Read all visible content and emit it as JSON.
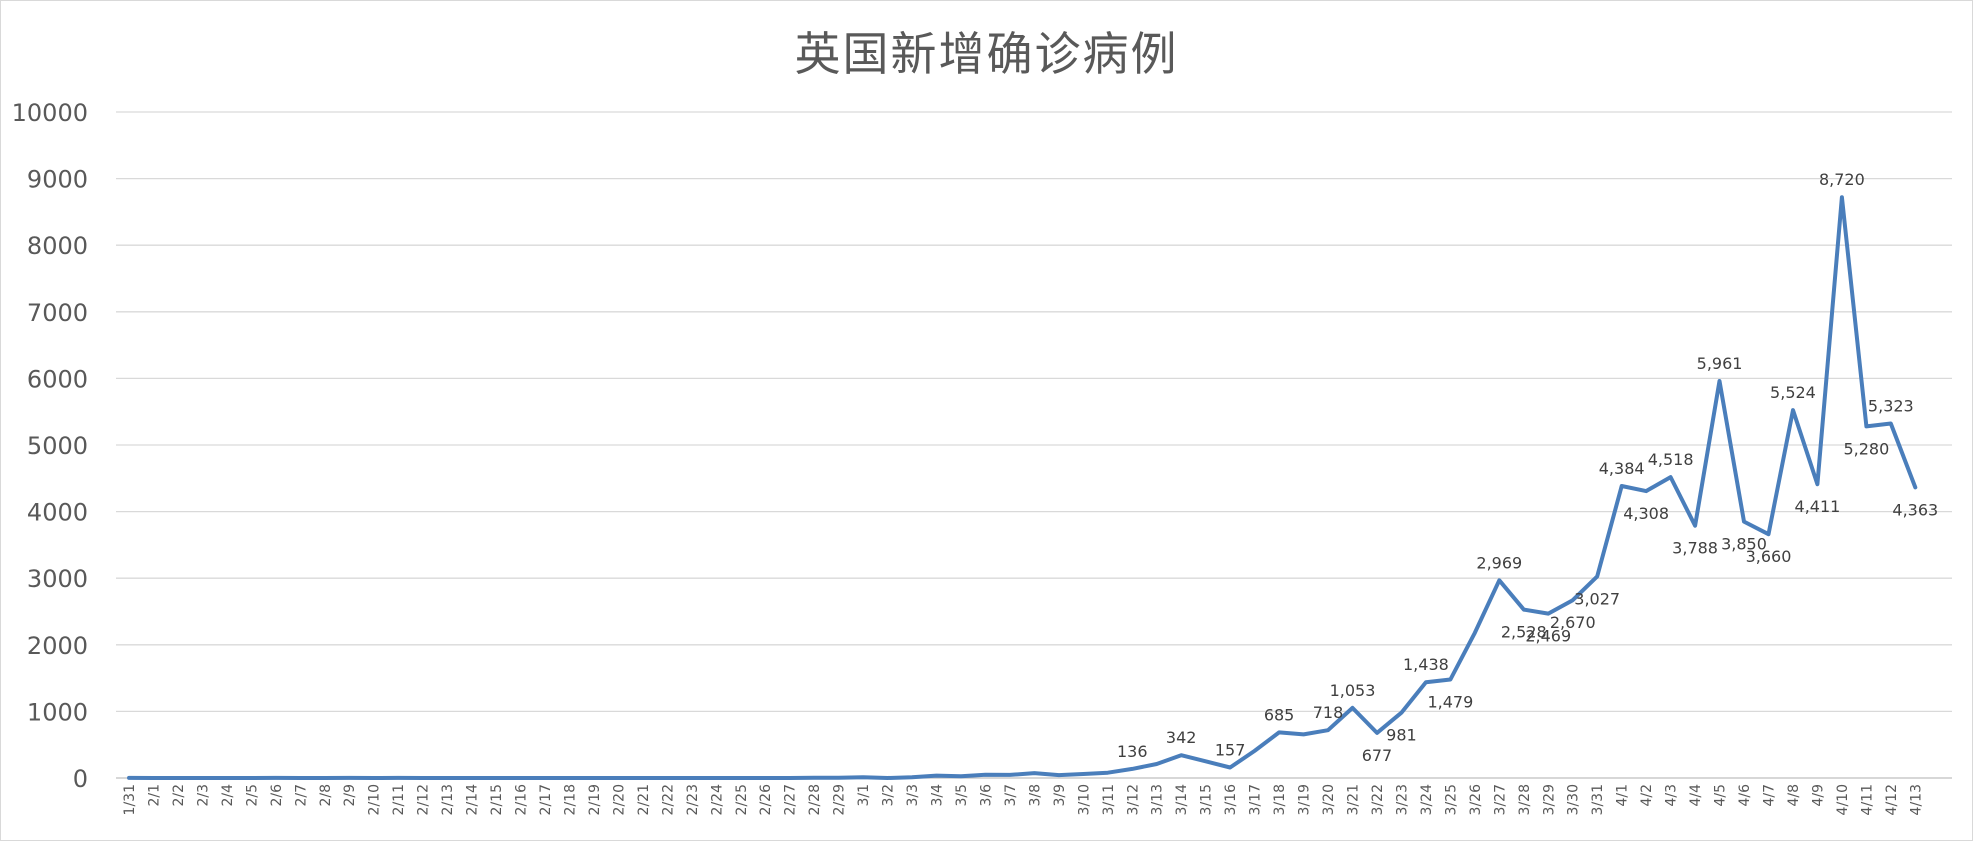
{
  "chart_data": {
    "type": "line",
    "title": "英国新增确诊病例",
    "xlabel": "",
    "ylabel": "",
    "ylim": [
      0,
      10000
    ],
    "yticks": [
      0,
      1000,
      2000,
      3000,
      4000,
      5000,
      6000,
      7000,
      8000,
      9000,
      10000
    ],
    "grid": true,
    "legend": "none",
    "color": "#4a7ebb",
    "categories": [
      "1/31",
      "2/1",
      "2/2",
      "2/3",
      "2/4",
      "2/5",
      "2/6",
      "2/7",
      "2/8",
      "2/9",
      "2/10",
      "2/11",
      "2/12",
      "2/13",
      "2/14",
      "2/15",
      "2/16",
      "2/17",
      "2/18",
      "2/19",
      "2/20",
      "2/21",
      "2/22",
      "2/23",
      "2/24",
      "2/25",
      "2/26",
      "2/27",
      "2/28",
      "2/29",
      "3/1",
      "3/2",
      "3/3",
      "3/4",
      "3/5",
      "3/6",
      "3/7",
      "3/8",
      "3/9",
      "3/10",
      "3/11",
      "3/12",
      "3/13",
      "3/14",
      "3/15",
      "3/16",
      "3/17",
      "3/18",
      "3/19",
      "3/20",
      "3/21",
      "3/22",
      "3/23",
      "3/24",
      "3/25",
      "3/26",
      "3/27",
      "3/28",
      "3/29",
      "3/30",
      "3/31",
      "4/1",
      "4/2",
      "4/3",
      "4/4",
      "4/5",
      "4/6",
      "4/7",
      "4/8",
      "4/9",
      "4/10",
      "4/11",
      "4/12",
      "4/13"
    ],
    "values": [
      2,
      0,
      0,
      0,
      0,
      0,
      1,
      0,
      0,
      1,
      0,
      1,
      0,
      0,
      0,
      0,
      0,
      0,
      0,
      0,
      0,
      0,
      0,
      0,
      0,
      0,
      0,
      0,
      3,
      4,
      12,
      0,
      12,
      36,
      27,
      48,
      46,
      73,
      43,
      60,
      80,
      136,
      210,
      342,
      251,
      157,
      407,
      685,
      655,
      718,
      1053,
      677,
      981,
      1438,
      1479,
      2178,
      2969,
      2528,
      2469,
      2670,
      3027,
      4384,
      4308,
      4518,
      3788,
      5961,
      3850,
      3660,
      5524,
      4411,
      8720,
      5280,
      5323,
      4363
    ],
    "data_labels": [
      {
        "x": "3/12",
        "text": "136",
        "pos": "above"
      },
      {
        "x": "3/14",
        "text": "342",
        "pos": "above"
      },
      {
        "x": "3/16",
        "text": "157",
        "pos": "above"
      },
      {
        "x": "3/18",
        "text": "685",
        "pos": "above"
      },
      {
        "x": "3/20",
        "text": "718",
        "pos": "above"
      },
      {
        "x": "3/21",
        "text": "1,053",
        "pos": "above"
      },
      {
        "x": "3/22",
        "text": "677",
        "pos": "below"
      },
      {
        "x": "3/23",
        "text": "981",
        "pos": "below"
      },
      {
        "x": "3/24",
        "text": "1,438",
        "pos": "above"
      },
      {
        "x": "3/25",
        "text": "1,479",
        "pos": "below"
      },
      {
        "x": "3/27",
        "text": "2,969",
        "pos": "above"
      },
      {
        "x": "3/28",
        "text": "2,528",
        "pos": "below"
      },
      {
        "x": "3/29",
        "text": "2,469",
        "pos": "below"
      },
      {
        "x": "3/30",
        "text": "2,670",
        "pos": "below"
      },
      {
        "x": "3/31",
        "text": "3,027",
        "pos": "below"
      },
      {
        "x": "4/1",
        "text": "4,384",
        "pos": "above"
      },
      {
        "x": "4/2",
        "text": "4,308",
        "pos": "below"
      },
      {
        "x": "4/3",
        "text": "4,518",
        "pos": "above"
      },
      {
        "x": "4/4",
        "text": "3,788",
        "pos": "below"
      },
      {
        "x": "4/5",
        "text": "5,961",
        "pos": "above"
      },
      {
        "x": "4/6",
        "text": "3,850",
        "pos": "below"
      },
      {
        "x": "4/7",
        "text": "3,660",
        "pos": "below"
      },
      {
        "x": "4/8",
        "text": "5,524",
        "pos": "above"
      },
      {
        "x": "4/9",
        "text": "4,411",
        "pos": "below"
      },
      {
        "x": "4/10",
        "text": "8,720",
        "pos": "above"
      },
      {
        "x": "4/11",
        "text": "5,280",
        "pos": "below"
      },
      {
        "x": "4/12",
        "text": "5,323",
        "pos": "above"
      },
      {
        "x": "4/13",
        "text": "4,363",
        "pos": "below"
      }
    ]
  }
}
